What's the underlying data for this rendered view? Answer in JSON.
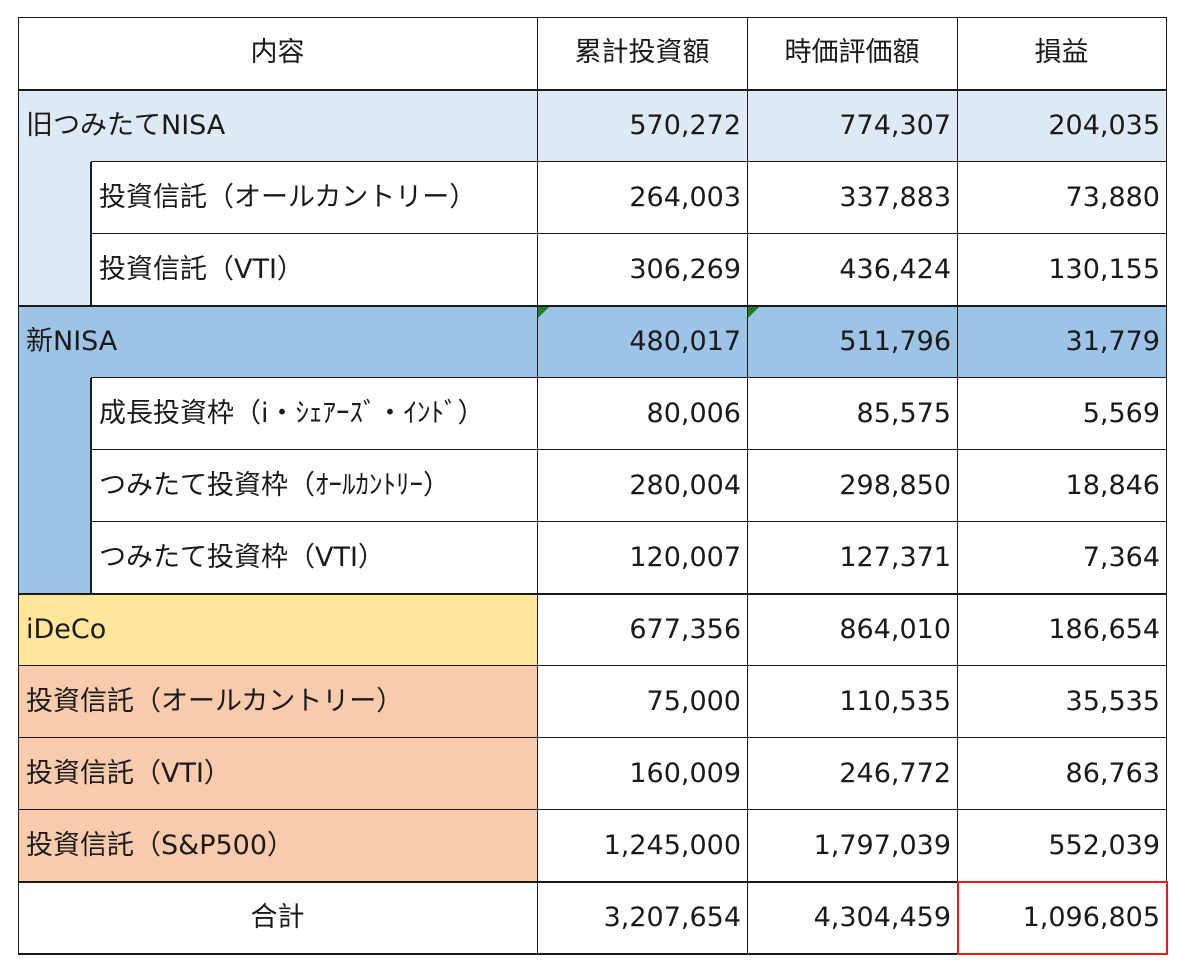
{
  "headers": [
    "内容",
    "累計投資額",
    "時価評価額",
    "損益"
  ],
  "colors": {
    "old_nisa": "#dde9f5",
    "new_nisa": "#9dc3e6",
    "ideco": "#ffe699",
    "other_funds": "#f8cbad",
    "total_highlight": "#e41c1c"
  },
  "rows": [
    {
      "label": "旧つみたてNISA",
      "invested": "570,272",
      "market": "774,307",
      "gain": "204,035"
    },
    {
      "label": "投資信託（オールカントリー）",
      "invested": "264,003",
      "market": "337,883",
      "gain": "73,880"
    },
    {
      "label": "投資信託（VTI）",
      "invested": "306,269",
      "market": "436,424",
      "gain": "130,155"
    },
    {
      "label": "新NISA",
      "invested": "480,017",
      "market": "511,796",
      "gain": "31,779"
    },
    {
      "label": "成長投資枠（i・ｼｪｱｰｽﾞ・ｲﾝﾄﾞ）",
      "invested": "80,006",
      "market": "85,575",
      "gain": "5,569"
    },
    {
      "label": "つみたて投資枠（ｵｰﾙｶﾝﾄﾘｰ）",
      "invested": "280,004",
      "market": "298,850",
      "gain": "18,846"
    },
    {
      "label": "つみたて投資枠（VTI）",
      "invested": "120,007",
      "market": "127,371",
      "gain": "7,364"
    },
    {
      "label": "iDeCo",
      "invested": "677,356",
      "market": "864,010",
      "gain": "186,654"
    },
    {
      "label": "投資信託（オールカントリー）",
      "invested": "75,000",
      "market": "110,535",
      "gain": "35,535"
    },
    {
      "label": "投資信託（VTI）",
      "invested": "160,009",
      "market": "246,772",
      "gain": "86,763"
    },
    {
      "label": "投資信託（S&P500）",
      "invested": "1,245,000",
      "market": "1,797,039",
      "gain": "552,039"
    }
  ],
  "total": {
    "label": "合計",
    "invested": "3,207,654",
    "market": "4,304,459",
    "gain": "1,096,805"
  }
}
